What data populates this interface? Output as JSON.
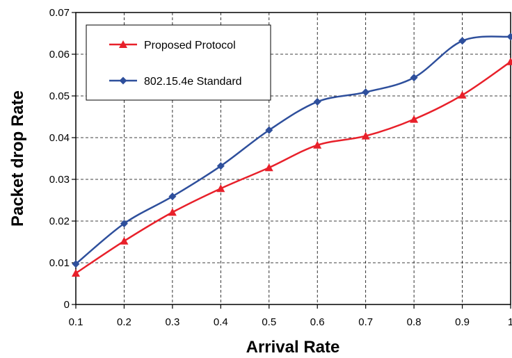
{
  "chart_data": {
    "type": "line",
    "title": "",
    "xlabel": "Arrival Rate",
    "ylabel": "Packet drop Rate",
    "xlim": [
      0.1,
      1
    ],
    "ylim": [
      0,
      0.07
    ],
    "x_ticks": [
      "0.1",
      "0.2",
      "0.3",
      "0.4",
      "0.5",
      "0.6",
      "0.7",
      "0.8",
      "0.9",
      "1"
    ],
    "y_ticks": [
      "0",
      "0.01",
      "0.02",
      "0.03",
      "0.04",
      "0.05",
      "0.06",
      "0.07"
    ],
    "grid": true,
    "legend_position": "top-left",
    "x": [
      0.1,
      0.2,
      0.3,
      0.4,
      0.5,
      0.6,
      0.7,
      0.8,
      0.9,
      1.0
    ],
    "series": [
      {
        "name": "Proposed Protocol",
        "color": "#e8202a",
        "marker": "triangle",
        "values": [
          0.0075,
          0.0152,
          0.0221,
          0.0278,
          0.0328,
          0.0382,
          0.0404,
          0.0444,
          0.0502,
          0.0582
        ]
      },
      {
        "name": "802.15.4e Standard",
        "color": "#2e4f9c",
        "marker": "diamond",
        "values": [
          0.0097,
          0.0194,
          0.0259,
          0.0332,
          0.0418,
          0.0486,
          0.0509,
          0.0544,
          0.0632,
          0.0642
        ]
      }
    ]
  }
}
